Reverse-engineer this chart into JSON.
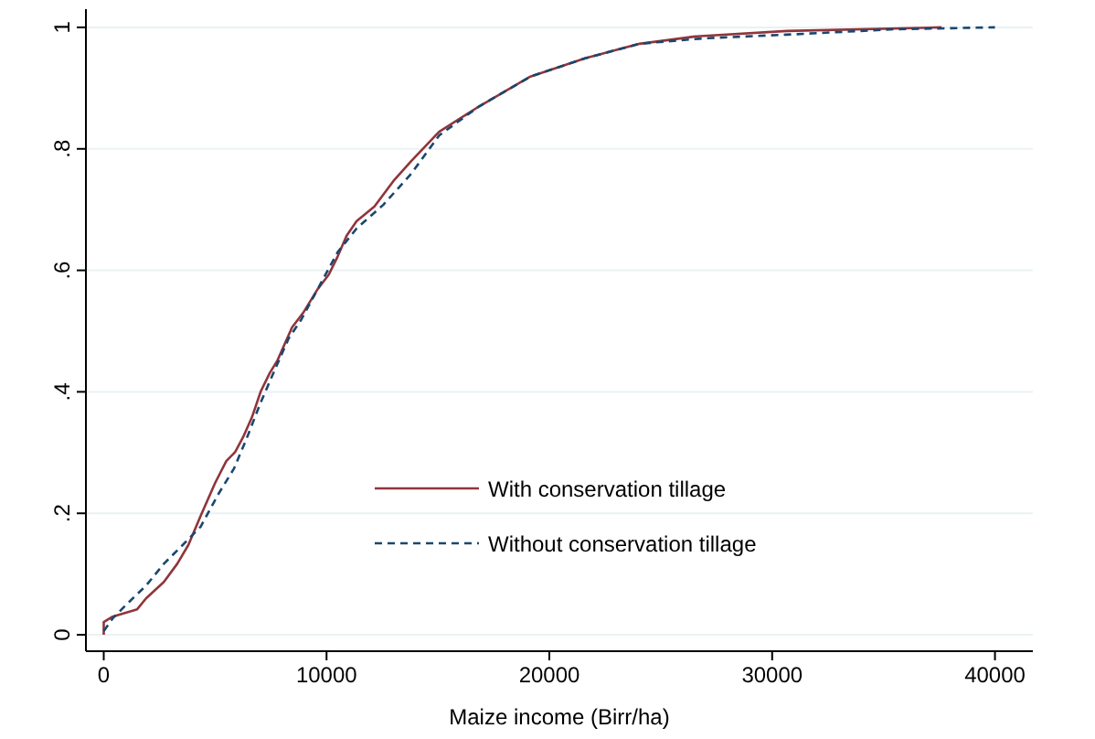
{
  "chart_data": {
    "type": "line",
    "xlabel": "Maize income (Birr/ha)",
    "xlim": [
      -800,
      41700
    ],
    "xticks": [
      0,
      10000,
      20000,
      30000,
      40000
    ],
    "ylim": [
      -0.027,
      1.03
    ],
    "yticks": [
      {
        "value": 0,
        "label": "0"
      },
      {
        "value": 0.2,
        "label": ".2"
      },
      {
        "value": 0.4,
        "label": ".4"
      },
      {
        "value": 0.6,
        "label": ".6"
      },
      {
        "value": 0.8,
        "label": ".8"
      },
      {
        "value": 1,
        "label": "1"
      }
    ],
    "grid": "y",
    "legend": "bottom right",
    "marker": "none",
    "series": [
      {
        "name": "With conservation tillage",
        "color": "#90353b",
        "line_style": "solid",
        "x": [
          0,
          0,
          400,
          1500,
          1900,
          2700,
          3300,
          3800,
          4350,
          5000,
          5500,
          5900,
          6250,
          6650,
          7050,
          7450,
          7800,
          8450,
          8950,
          9600,
          10100,
          10500,
          10900,
          11350,
          12150,
          13000,
          13800,
          15050,
          16850,
          19150,
          21600,
          24050,
          26550,
          30650,
          37600
        ],
        "values": [
          0,
          0.021,
          0.03,
          0.042,
          0.06,
          0.087,
          0.117,
          0.148,
          0.196,
          0.25,
          0.286,
          0.301,
          0.325,
          0.358,
          0.401,
          0.431,
          0.452,
          0.506,
          0.53,
          0.569,
          0.593,
          0.623,
          0.657,
          0.681,
          0.705,
          0.747,
          0.78,
          0.828,
          0.87,
          0.919,
          0.949,
          0.973,
          0.985,
          0.994,
          1
        ]
      },
      {
        "name": "Without conservation tillage",
        "color": "#1a476f",
        "line_style": "dashed",
        "x": [
          0,
          400,
          1050,
          1900,
          2700,
          3550,
          4350,
          5150,
          5850,
          6400,
          7050,
          7650,
          8300,
          8850,
          9600,
          10500,
          11350,
          12550,
          13800,
          15050,
          16850,
          19150,
          21600,
          24050,
          26950,
          30650,
          35550,
          40000
        ],
        "values": [
          0.006,
          0.027,
          0.051,
          0.081,
          0.117,
          0.148,
          0.178,
          0.232,
          0.274,
          0.322,
          0.383,
          0.434,
          0.488,
          0.518,
          0.569,
          0.63,
          0.669,
          0.708,
          0.759,
          0.822,
          0.87,
          0.919,
          0.949,
          0.973,
          0.982,
          0.988,
          0.997,
          1
        ]
      }
    ]
  }
}
